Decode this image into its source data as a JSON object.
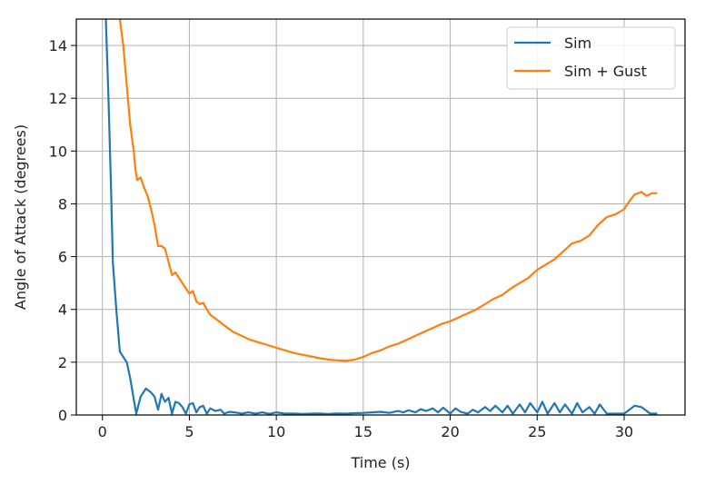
{
  "chart_data": {
    "type": "line",
    "xlabel": "Time (s)",
    "ylabel": "Angle of Attack (degrees)",
    "xlim": [
      -1.5,
      33.5
    ],
    "ylim": [
      0,
      15
    ],
    "xticks": [
      0,
      5,
      10,
      15,
      20,
      25,
      30
    ],
    "yticks": [
      0,
      2,
      4,
      6,
      8,
      10,
      12,
      14
    ],
    "grid": true,
    "legend_position": "top-right",
    "series": [
      {
        "name": "Sim",
        "color": "#1f77b4",
        "x": [
          0.2,
          0.35,
          0.5,
          0.6,
          0.8,
          1.0,
          1.2,
          1.4,
          1.6,
          1.8,
          1.95,
          2.2,
          2.5,
          2.8,
          3.0,
          3.2,
          3.4,
          3.6,
          3.8,
          4.0,
          4.2,
          4.4,
          4.6,
          4.8,
          5.0,
          5.2,
          5.4,
          5.6,
          5.8,
          6.0,
          6.2,
          6.5,
          6.8,
          7.0,
          7.3,
          7.6,
          8.0,
          8.4,
          8.8,
          9.2,
          9.6,
          10.0,
          10.5,
          11.0,
          11.5,
          12.0,
          12.5,
          13.0,
          13.5,
          14.0,
          14.5,
          15.0,
          15.5,
          16.0,
          16.5,
          17.0,
          17.3,
          17.6,
          18.0,
          18.3,
          18.6,
          19.0,
          19.3,
          19.6,
          20.0,
          20.3,
          20.6,
          21.0,
          21.3,
          21.6,
          22.0,
          22.3,
          22.6,
          23.0,
          23.3,
          23.6,
          24.0,
          24.3,
          24.6,
          25.0,
          25.3,
          25.6,
          26.0,
          26.3,
          26.6,
          27.0,
          27.3,
          27.6,
          28.0,
          28.3,
          28.6,
          29.0,
          29.5,
          30.0,
          30.3,
          30.6,
          31.0,
          31.5,
          31.9
        ],
        "y": [
          15.0,
          12.0,
          8.5,
          5.8,
          4.0,
          2.4,
          2.2,
          2.0,
          1.4,
          0.6,
          0.05,
          0.7,
          1.0,
          0.85,
          0.7,
          0.2,
          0.8,
          0.5,
          0.65,
          0.05,
          0.5,
          0.45,
          0.3,
          0.05,
          0.4,
          0.45,
          0.1,
          0.3,
          0.35,
          0.05,
          0.25,
          0.15,
          0.2,
          0.05,
          0.12,
          0.1,
          0.05,
          0.1,
          0.05,
          0.1,
          0.04,
          0.1,
          0.05,
          0.06,
          0.04,
          0.05,
          0.06,
          0.04,
          0.06,
          0.05,
          0.07,
          0.08,
          0.1,
          0.12,
          0.08,
          0.15,
          0.1,
          0.18,
          0.1,
          0.22,
          0.15,
          0.25,
          0.1,
          0.28,
          0.05,
          0.25,
          0.12,
          0.05,
          0.2,
          0.1,
          0.3,
          0.15,
          0.35,
          0.1,
          0.35,
          0.05,
          0.4,
          0.1,
          0.45,
          0.1,
          0.5,
          0.05,
          0.45,
          0.1,
          0.4,
          0.05,
          0.45,
          0.1,
          0.3,
          0.05,
          0.4,
          0.05,
          0.05,
          0.05,
          0.2,
          0.35,
          0.3,
          0.05,
          0.05
        ]
      },
      {
        "name": "Sim + Gust",
        "color": "#ff7f0e",
        "x": [
          1.0,
          1.2,
          1.4,
          1.6,
          1.8,
          1.9,
          2.0,
          2.2,
          2.4,
          2.6,
          2.8,
          3.0,
          3.2,
          3.4,
          3.6,
          3.8,
          4.0,
          4.2,
          4.4,
          4.6,
          4.8,
          5.0,
          5.2,
          5.4,
          5.6,
          5.8,
          6.0,
          6.2,
          6.5,
          7.0,
          7.5,
          8.0,
          8.5,
          9.0,
          9.5,
          10.0,
          10.5,
          11.0,
          11.5,
          12.0,
          12.5,
          13.0,
          13.5,
          14.0,
          14.5,
          15.0,
          15.5,
          16.0,
          16.5,
          17.0,
          17.5,
          18.0,
          18.5,
          19.0,
          19.5,
          20.0,
          20.5,
          21.0,
          21.5,
          22.0,
          22.5,
          23.0,
          23.5,
          24.0,
          24.5,
          25.0,
          25.5,
          26.0,
          26.5,
          27.0,
          27.5,
          28.0,
          28.5,
          29.0,
          29.5,
          30.0,
          30.3,
          30.6,
          31.0,
          31.3,
          31.6,
          31.9
        ],
        "y": [
          15.0,
          14.0,
          12.5,
          11.0,
          10.0,
          9.3,
          8.9,
          9.0,
          8.6,
          8.3,
          7.8,
          7.2,
          6.4,
          6.4,
          6.3,
          5.8,
          5.3,
          5.4,
          5.2,
          5.0,
          4.8,
          4.6,
          4.7,
          4.3,
          4.2,
          4.25,
          4.0,
          3.8,
          3.65,
          3.4,
          3.15,
          3.0,
          2.85,
          2.75,
          2.65,
          2.55,
          2.45,
          2.35,
          2.28,
          2.22,
          2.15,
          2.1,
          2.07,
          2.05,
          2.1,
          2.2,
          2.35,
          2.45,
          2.6,
          2.7,
          2.85,
          3.0,
          3.15,
          3.3,
          3.45,
          3.55,
          3.7,
          3.85,
          4.0,
          4.2,
          4.4,
          4.55,
          4.8,
          5.0,
          5.2,
          5.5,
          5.7,
          5.9,
          6.2,
          6.5,
          6.6,
          6.8,
          7.2,
          7.5,
          7.6,
          7.8,
          8.1,
          8.35,
          8.45,
          8.3,
          8.4,
          8.4
        ]
      }
    ]
  }
}
